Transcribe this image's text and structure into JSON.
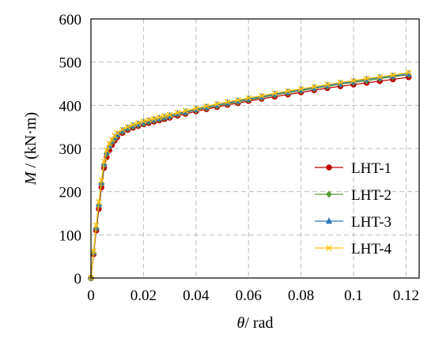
{
  "chart_data": {
    "type": "line",
    "xlabel_symbol": "θ",
    "xlabel_unit": "/ rad",
    "ylabel_symbol": "M",
    "ylabel_unit": " / (kN·m)",
    "xlim": [
      0,
      0.125
    ],
    "ylim": [
      0,
      600
    ],
    "x_ticks": [
      0,
      0.02,
      0.04,
      0.06,
      0.08,
      0.1,
      0.12
    ],
    "x_tick_labels": [
      "0",
      "0.02",
      "0.04",
      "0.06",
      "0.08",
      "0.1",
      "0.12"
    ],
    "y_ticks": [
      0,
      100,
      200,
      300,
      400,
      500,
      600
    ],
    "y_tick_labels": [
      "0",
      "100",
      "200",
      "300",
      "400",
      "500",
      "600"
    ],
    "grid": true,
    "legend_position": "right",
    "series": [
      {
        "name": "LHT-1",
        "color": "#c00000",
        "marker": "circle",
        "x": [
          0,
          0.001,
          0.002,
          0.003,
          0.004,
          0.005,
          0.006,
          0.007,
          0.008,
          0.009,
          0.01,
          0.012,
          0.014,
          0.016,
          0.018,
          0.02,
          0.022,
          0.024,
          0.026,
          0.028,
          0.03,
          0.033,
          0.036,
          0.04,
          0.044,
          0.048,
          0.052,
          0.056,
          0.06,
          0.065,
          0.07,
          0.075,
          0.08,
          0.085,
          0.09,
          0.095,
          0.1,
          0.105,
          0.11,
          0.115,
          0.121
        ],
        "y": [
          0,
          55,
          110,
          160,
          210,
          255,
          280,
          296,
          308,
          318,
          326,
          336,
          343,
          348,
          352,
          356,
          359,
          362,
          365,
          368,
          371,
          376,
          380,
          386,
          391,
          396,
          401,
          405,
          410,
          415,
          420,
          425,
          430,
          435,
          440,
          444,
          448,
          452,
          456,
          460,
          465
        ]
      },
      {
        "name": "LHT-2",
        "color": "#5b9b3a",
        "marker": "diamond",
        "x": [
          0,
          0.001,
          0.002,
          0.003,
          0.004,
          0.005,
          0.006,
          0.007,
          0.008,
          0.009,
          0.01,
          0.012,
          0.014,
          0.016,
          0.018,
          0.02,
          0.022,
          0.024,
          0.026,
          0.028,
          0.03,
          0.033,
          0.036,
          0.04,
          0.044,
          0.048,
          0.052,
          0.056,
          0.06,
          0.065,
          0.07,
          0.075,
          0.08,
          0.085,
          0.09,
          0.095,
          0.1,
          0.105,
          0.11,
          0.115,
          0.121
        ],
        "y": [
          0,
          58,
          115,
          168,
          218,
          262,
          288,
          304,
          315,
          323,
          330,
          339,
          346,
          351,
          355,
          358,
          362,
          365,
          368,
          371,
          374,
          379,
          383,
          389,
          394,
          399,
          404,
          408,
          413,
          418,
          424,
          429,
          434,
          439,
          444,
          449,
          453,
          457,
          462,
          466,
          471
        ]
      },
      {
        "name": "LHT-3",
        "color": "#2e75b6",
        "marker": "triangle",
        "x": [
          0,
          0.001,
          0.002,
          0.003,
          0.004,
          0.005,
          0.006,
          0.007,
          0.008,
          0.009,
          0.01,
          0.012,
          0.014,
          0.016,
          0.018,
          0.02,
          0.022,
          0.024,
          0.026,
          0.028,
          0.03,
          0.033,
          0.036,
          0.04,
          0.044,
          0.048,
          0.052,
          0.056,
          0.06,
          0.065,
          0.07,
          0.075,
          0.08,
          0.085,
          0.09,
          0.095,
          0.1,
          0.105,
          0.11,
          0.115,
          0.121
        ],
        "y": [
          0,
          60,
          118,
          172,
          222,
          266,
          292,
          307,
          318,
          326,
          333,
          342,
          348,
          353,
          357,
          361,
          364,
          367,
          370,
          373,
          376,
          381,
          385,
          391,
          396,
          401,
          406,
          410,
          415,
          420,
          426,
          431,
          436,
          441,
          446,
          451,
          455,
          460,
          464,
          468,
          473
        ]
      },
      {
        "name": "LHT-4",
        "color": "#ffc000",
        "marker": "x",
        "x": [
          0,
          0.001,
          0.002,
          0.003,
          0.004,
          0.005,
          0.006,
          0.007,
          0.008,
          0.009,
          0.01,
          0.012,
          0.014,
          0.016,
          0.018,
          0.02,
          0.022,
          0.024,
          0.026,
          0.028,
          0.03,
          0.033,
          0.036,
          0.04,
          0.044,
          0.048,
          0.052,
          0.056,
          0.06,
          0.065,
          0.07,
          0.075,
          0.08,
          0.085,
          0.09,
          0.095,
          0.1,
          0.105,
          0.11,
          0.115,
          0.121
        ],
        "y": [
          0,
          62,
          122,
          176,
          226,
          270,
          296,
          311,
          321,
          329,
          336,
          344,
          350,
          355,
          359,
          363,
          366,
          369,
          372,
          375,
          378,
          383,
          387,
          393,
          398,
          403,
          408,
          412,
          417,
          422,
          428,
          433,
          438,
          443,
          448,
          453,
          457,
          462,
          466,
          470,
          476
        ]
      }
    ]
  }
}
